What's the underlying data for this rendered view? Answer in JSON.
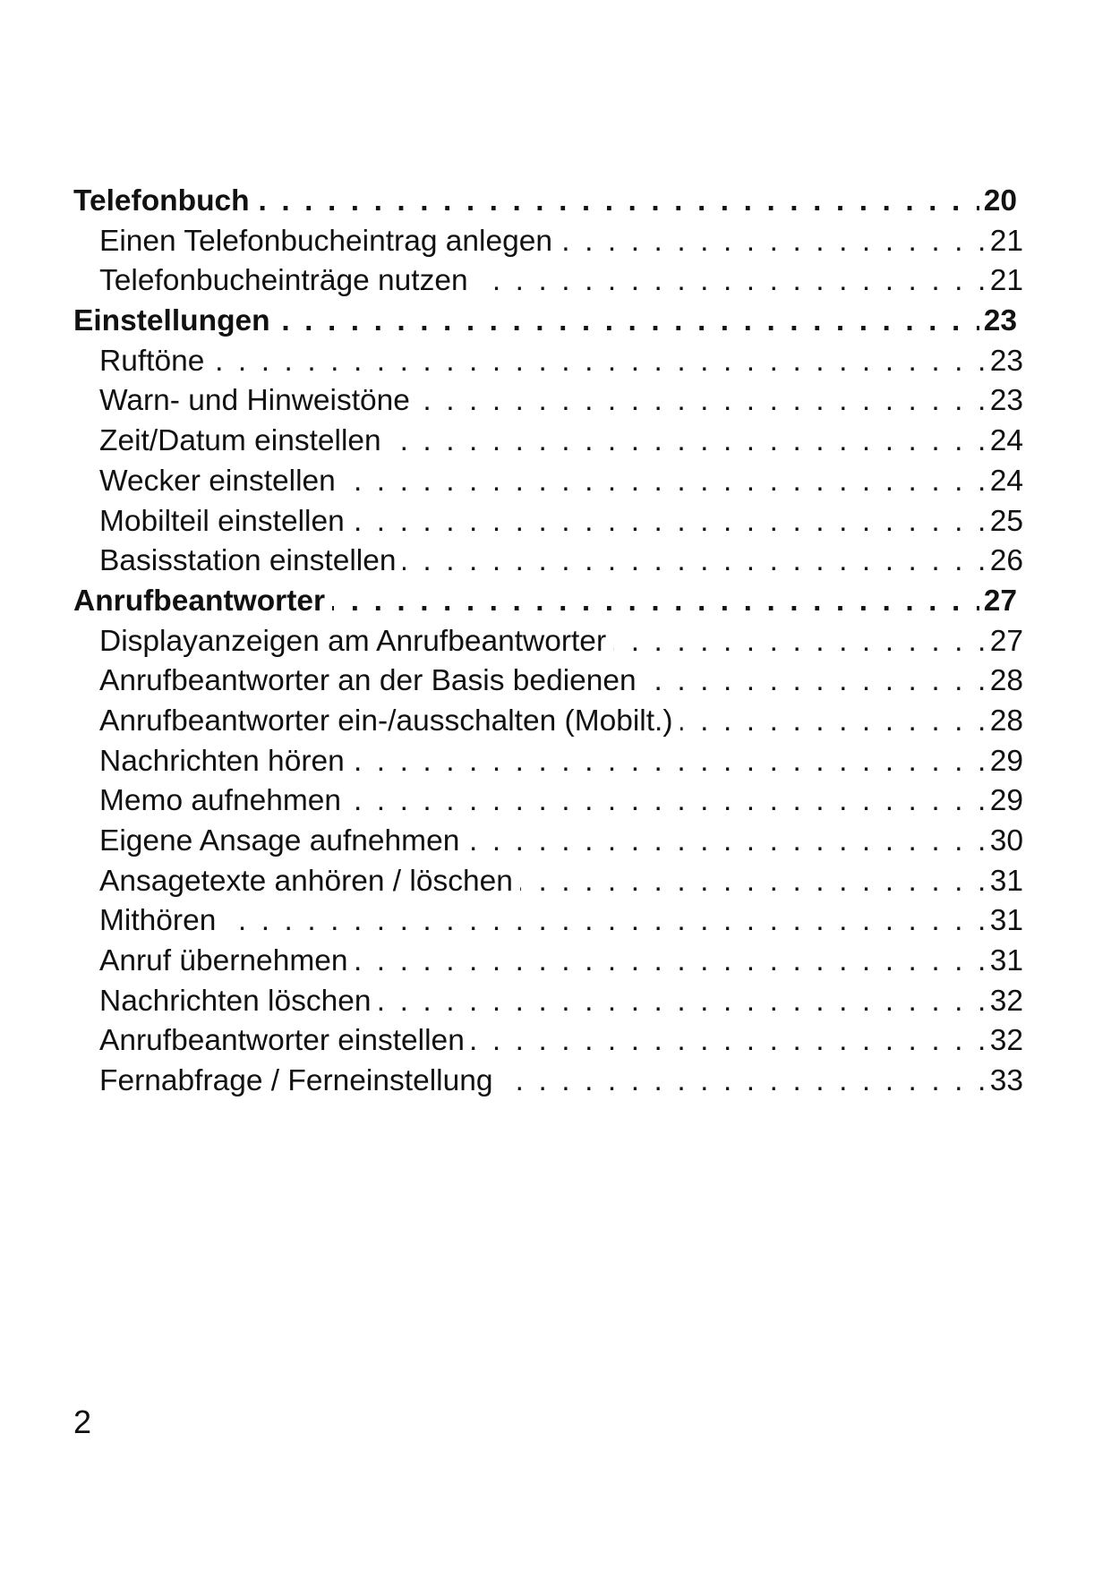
{
  "toc": [
    {
      "level": "heading",
      "title": "Telefonbuch",
      "page": "20"
    },
    {
      "level": "sub",
      "title": "Einen Telefonbucheintrag anlegen",
      "page": "21"
    },
    {
      "level": "sub",
      "title": "Telefonbucheinträge nutzen",
      "page": "21"
    },
    {
      "level": "heading",
      "title": "Einstellungen",
      "page": "23"
    },
    {
      "level": "sub",
      "title": "Ruftöne",
      "page": "23"
    },
    {
      "level": "sub",
      "title": "Warn- und Hinweistöne",
      "page": "23"
    },
    {
      "level": "sub",
      "title": "Zeit/Datum einstellen",
      "page": "24"
    },
    {
      "level": "sub",
      "title": "Wecker einstellen",
      "page": "24"
    },
    {
      "level": "sub",
      "title": "Mobilteil einstellen",
      "page": "25"
    },
    {
      "level": "sub",
      "title": "Basisstation einstellen",
      "page": "26"
    },
    {
      "level": "heading",
      "title": "Anrufbeantworter",
      "page": "27"
    },
    {
      "level": "sub",
      "title": "Displayanzeigen am Anrufbeantworter",
      "page": "27"
    },
    {
      "level": "sub",
      "title": "Anrufbeantworter an der Basis bedienen",
      "page": "28"
    },
    {
      "level": "sub",
      "title": "Anrufbeantworter ein-/ausschalten (Mobilt.)",
      "page": "28"
    },
    {
      "level": "sub",
      "title": "Nachrichten hören",
      "page": "29"
    },
    {
      "level": "sub",
      "title": "Memo aufnehmen",
      "page": "29"
    },
    {
      "level": "sub",
      "title": "Eigene Ansage aufnehmen",
      "page": "30"
    },
    {
      "level": "sub",
      "title": "Ansagetexte anhören / löschen",
      "page": "31"
    },
    {
      "level": "sub",
      "title": "Mithören",
      "page": "31"
    },
    {
      "level": "sub",
      "title": "Anruf übernehmen",
      "page": "31"
    },
    {
      "level": "sub",
      "title": "Nachrichten löschen",
      "page": "32"
    },
    {
      "level": "sub",
      "title": "Anrufbeantworter einstellen",
      "page": "32"
    },
    {
      "level": "sub",
      "title": "Fernabfrage / Ferneinstellung",
      "page": "33"
    }
  ],
  "footer": {
    "page_number": "2"
  }
}
